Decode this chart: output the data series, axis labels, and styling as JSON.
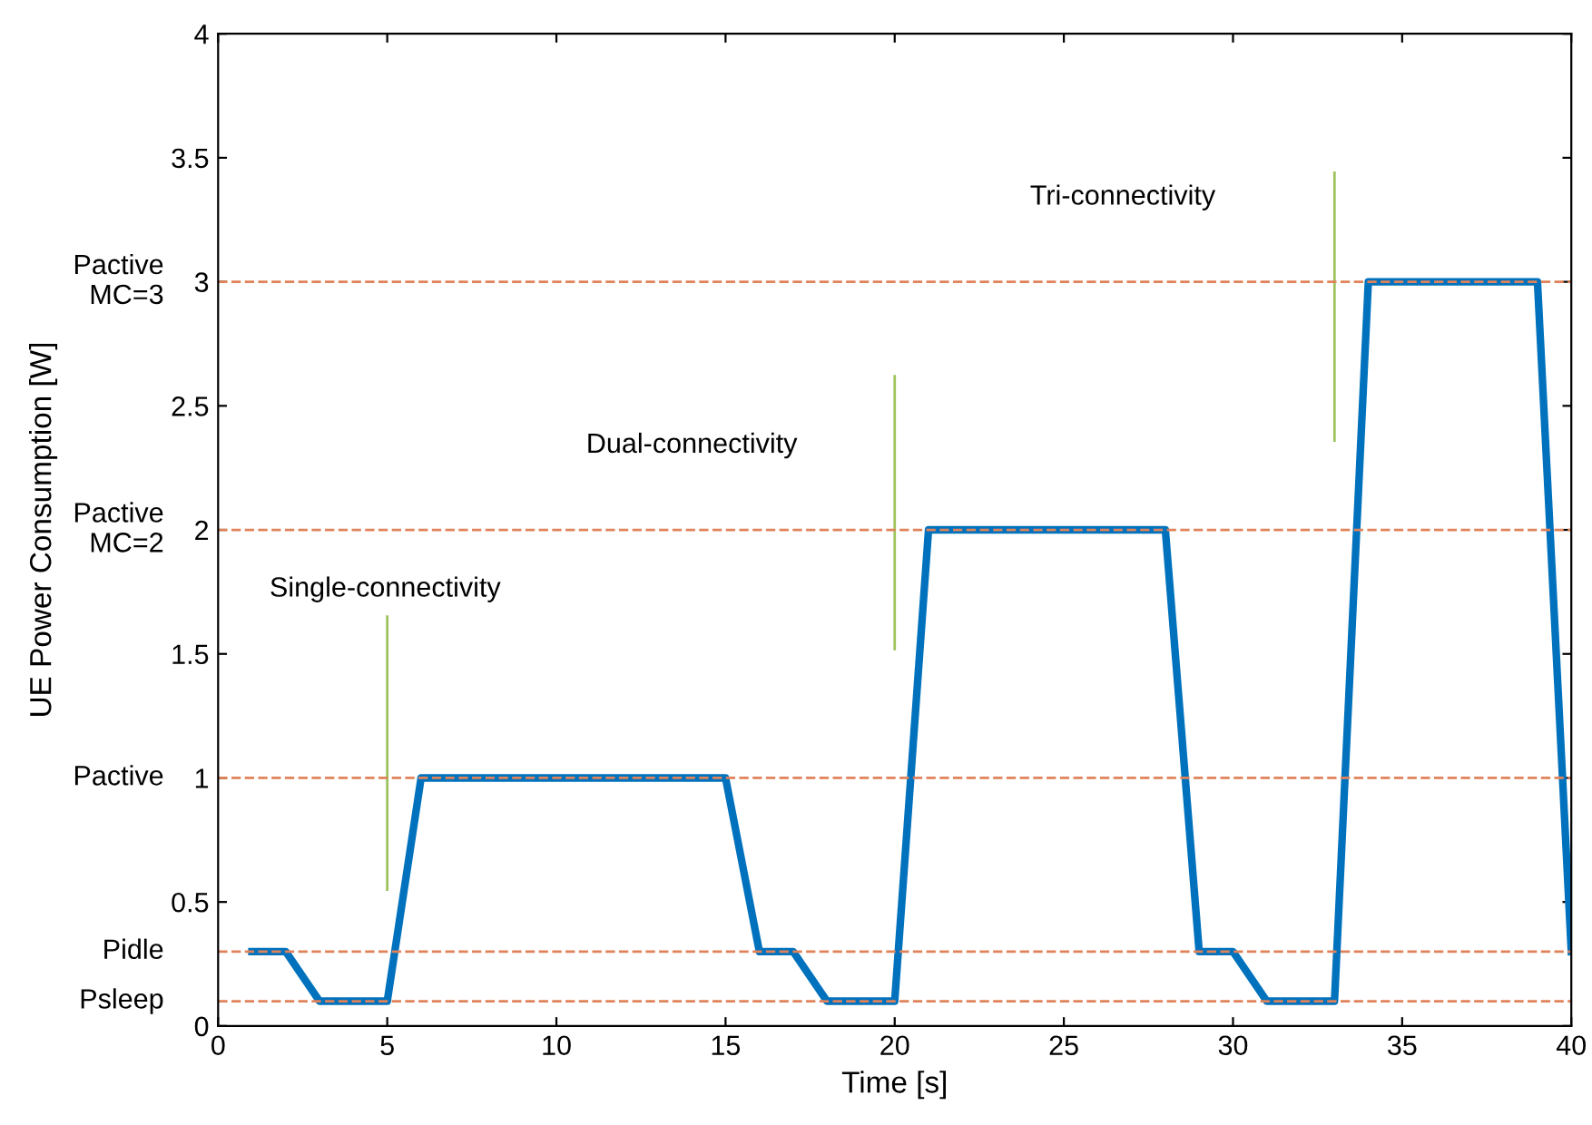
{
  "chart_data": {
    "type": "line",
    "xlabel": "Time [s]",
    "ylabel": "UE Power Consumption [W]",
    "xlim": [
      0,
      40
    ],
    "xticks": [
      0,
      5,
      10,
      15,
      20,
      25,
      30,
      35,
      40
    ],
    "ylim": [
      0,
      4
    ],
    "yticks": [
      0,
      0.5,
      1,
      1.5,
      2,
      2.5,
      3,
      3.5,
      4
    ],
    "grid": false,
    "legend": false,
    "line_style": "solid",
    "marker": "none",
    "series": [
      {
        "color": "#0072bd",
        "x": [
          1,
          2,
          3,
          5,
          6,
          15,
          16,
          17,
          18,
          20,
          21,
          28,
          29,
          30,
          31,
          33,
          34,
          39,
          40
        ],
        "values": [
          0.3,
          0.3,
          0.1,
          0.1,
          1,
          1,
          0.3,
          0.3,
          0.1,
          0.1,
          2,
          2,
          0.3,
          0.3,
          0.1,
          0.1,
          3,
          3,
          0.3
        ]
      },
      {
        "color": "#9dc35f",
        "x": [
          5,
          5
        ],
        "values": [
          0.55,
          1.65
        ]
      },
      {
        "color": "#9dc35f",
        "x": [
          20,
          20
        ],
        "values": [
          1.52,
          2.62
        ]
      },
      {
        "color": "#9dc35f",
        "x": [
          33,
          33
        ],
        "values": [
          2.36,
          3.44
        ]
      }
    ],
    "ref_lines": [
      {
        "axis": "y",
        "value": 3,
        "label": "Pactive\nMC=3",
        "color": "#e0825a",
        "line_style": "dashed"
      },
      {
        "axis": "y",
        "value": 2,
        "label": "Pactive\nMC=2",
        "color": "#e0825a",
        "line_style": "dashed"
      },
      {
        "axis": "y",
        "value": 1,
        "label": "Pactive",
        "color": "#e0825a",
        "line_style": "dashed"
      },
      {
        "axis": "y",
        "value": 0.3,
        "label": "Pidle",
        "color": "#e0825a",
        "line_style": "dashed"
      },
      {
        "axis": "y",
        "value": 0.1,
        "label": "Psleep",
        "color": "#e0825a",
        "line_style": "dashed"
      }
    ],
    "annotations": [
      "Single-connectivity",
      "Dual-connectivity",
      "Tri-connectivity"
    ]
  }
}
